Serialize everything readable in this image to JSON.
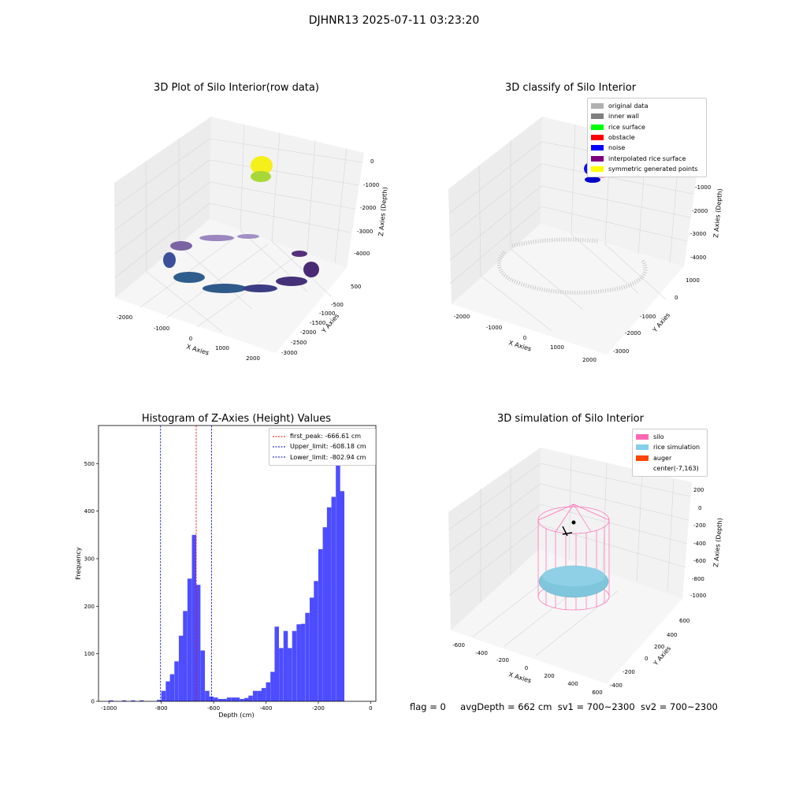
{
  "suptitle": "DJHNR13 2025-07-11 03:23:20",
  "panels": {
    "raw": {
      "title": "3D Plot of Silo Interior(row data)",
      "xlabel": "X Axies",
      "ylabel": "Y Axies",
      "zlabel": "Z Axies (Depth)",
      "xticks": [
        "-2000",
        "-1000",
        "0",
        "1000",
        "2000"
      ],
      "yticks": [
        "500",
        "-500",
        "-1000",
        "-1500",
        "-2000",
        "-2500",
        "-3000"
      ],
      "zticks": [
        "0",
        "-1000",
        "-2000",
        "-3000",
        "-4000"
      ]
    },
    "classify": {
      "title": "3D classify of Silo Interior",
      "xlabel": "X Axies",
      "ylabel": "Y Axies",
      "zlabel": "Z Axies (Depth)",
      "xticks": [
        "-2000",
        "-1000",
        "0",
        "1000",
        "2000"
      ],
      "yticks": [
        "1000",
        "0",
        "-1000",
        "-2000",
        "-3000"
      ],
      "zticks": [
        "0",
        "-1000",
        "-2000",
        "-3000",
        "-4000"
      ],
      "legend": [
        {
          "label": "original data",
          "color": "#b0b0b0"
        },
        {
          "label": "inner wall",
          "color": "#808080"
        },
        {
          "label": "rice surface",
          "color": "#00ff00"
        },
        {
          "label": "obstacle",
          "color": "#ff0000"
        },
        {
          "label": "noise",
          "color": "#0000ff"
        },
        {
          "label": "interpolated rice surface",
          "color": "#800080"
        },
        {
          "label": "symmetric generated points",
          "color": "#ffff00"
        }
      ]
    },
    "histogram": {
      "title": "Histogram of Z-Axies (Height) Values",
      "xlabel": "Depth (cm)",
      "ylabel": "Frequency",
      "bar_color": "#4d4dff",
      "legend": [
        {
          "label": "first_peak: -666.61 cm",
          "color": "#ff0000"
        },
        {
          "label": "Upper_limit: -608.18 cm",
          "color": "#0000cc"
        },
        {
          "label": "Lower_limit: -802.94 cm",
          "color": "#0000cc"
        }
      ]
    },
    "simulation": {
      "title": "3D simulation of Silo Interior",
      "xlabel": "X Axies",
      "ylabel": "Y Axies",
      "zlabel": "Z Axies (Depth)",
      "xticks": [
        "-600",
        "-400",
        "-200",
        "0",
        "200",
        "400",
        "600"
      ],
      "yticks": [
        "600",
        "400",
        "200",
        "0",
        "-200",
        "-400"
      ],
      "zticks": [
        "200",
        "0",
        "-200",
        "-400",
        "-600",
        "-800",
        "-1000"
      ],
      "legend": [
        {
          "label": "silo",
          "color": "#ff69b4"
        },
        {
          "label": "rice simulation",
          "color": "#87ceeb"
        },
        {
          "label": "auger",
          "color": "#ff4500"
        },
        {
          "label": "center(-7,163)",
          "color": "#ffffff"
        }
      ]
    }
  },
  "status": {
    "flag": "flag = 0",
    "avg": "avgDepth = 662 cm",
    "sv1": "sv1 = 700~2300",
    "sv2": "sv2 = 700~2300"
  },
  "chart_data": {
    "type": "bar",
    "title": "Histogram of Z-Axies (Height) Values",
    "xlabel": "Depth (cm)",
    "ylabel": "Frequency",
    "xlim": [
      -1040,
      20
    ],
    "ylim": [
      0,
      580
    ],
    "xticks": [
      -1000,
      -800,
      -600,
      -400,
      -200,
      0
    ],
    "yticks": [
      0,
      100,
      200,
      300,
      400,
      500
    ],
    "bin_width": 16.6,
    "bins": [
      {
        "x": -1000,
        "v": 2
      },
      {
        "x": -950,
        "v": 2
      },
      {
        "x": -916,
        "v": 2
      },
      {
        "x": -883,
        "v": 2
      },
      {
        "x": -817,
        "v": 3
      },
      {
        "x": -800,
        "v": 22
      },
      {
        "x": -783,
        "v": 42
      },
      {
        "x": -767,
        "v": 57
      },
      {
        "x": -750,
        "v": 84
      },
      {
        "x": -733,
        "v": 138
      },
      {
        "x": -717,
        "v": 190
      },
      {
        "x": -700,
        "v": 258
      },
      {
        "x": -683,
        "v": 350
      },
      {
        "x": -667,
        "v": 245
      },
      {
        "x": -650,
        "v": 107
      },
      {
        "x": -633,
        "v": 22
      },
      {
        "x": -617,
        "v": 10
      },
      {
        "x": -600,
        "v": 8
      },
      {
        "x": -583,
        "v": 5
      },
      {
        "x": -567,
        "v": 5
      },
      {
        "x": -550,
        "v": 8
      },
      {
        "x": -533,
        "v": 8
      },
      {
        "x": -517,
        "v": 8
      },
      {
        "x": -500,
        "v": 5
      },
      {
        "x": -483,
        "v": 7
      },
      {
        "x": -467,
        "v": 12
      },
      {
        "x": -450,
        "v": 22
      },
      {
        "x": -433,
        "v": 22
      },
      {
        "x": -417,
        "v": 28
      },
      {
        "x": -400,
        "v": 40
      },
      {
        "x": -383,
        "v": 62
      },
      {
        "x": -367,
        "v": 157
      },
      {
        "x": -350,
        "v": 112
      },
      {
        "x": -333,
        "v": 148
      },
      {
        "x": -317,
        "v": 112
      },
      {
        "x": -300,
        "v": 148
      },
      {
        "x": -283,
        "v": 162
      },
      {
        "x": -267,
        "v": 163
      },
      {
        "x": -250,
        "v": 186
      },
      {
        "x": -233,
        "v": 218
      },
      {
        "x": -217,
        "v": 253
      },
      {
        "x": -200,
        "v": 320
      },
      {
        "x": -183,
        "v": 366
      },
      {
        "x": -167,
        "v": 408
      },
      {
        "x": -150,
        "v": 430
      },
      {
        "x": -133,
        "v": 550
      },
      {
        "x": -117,
        "v": 442
      }
    ],
    "vlines": [
      {
        "name": "first_peak: -666.61 cm",
        "x": -666.61,
        "color": "#ff0000"
      },
      {
        "name": "Upper_limit: -608.18 cm",
        "x": -608.18,
        "color": "#0000cc"
      },
      {
        "name": "Lower_limit: -802.94 cm",
        "x": -802.94,
        "color": "#0000cc"
      }
    ]
  }
}
